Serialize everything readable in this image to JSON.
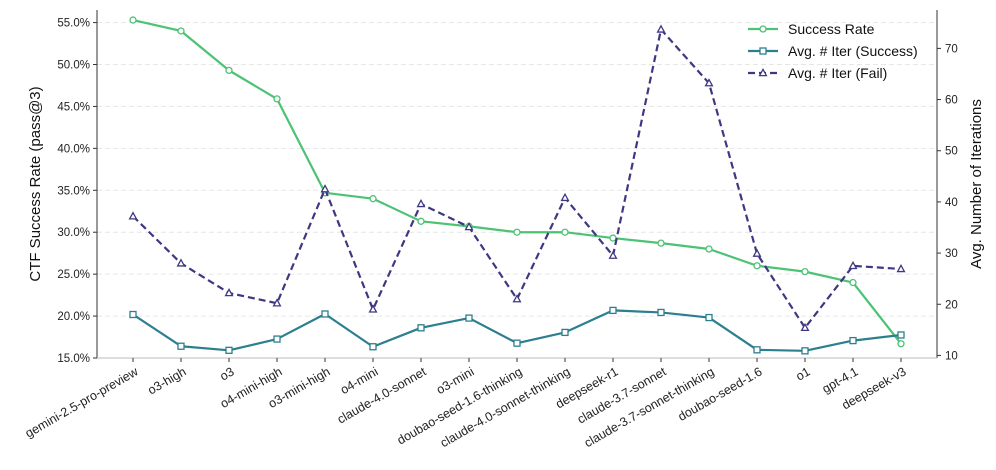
{
  "chart_data": {
    "type": "line",
    "categories": [
      "gemini-2.5-pro-preview",
      "o3-high",
      "o3",
      "o4-mini-high",
      "o3-mini-high",
      "o4-mini",
      "claude-4.0-sonnet",
      "o3-mini",
      "doubao-seed-1.6-thinking",
      "claude-4.0-sonnet-thinking",
      "deepseek-r1",
      "claude-3.7-sonnet",
      "claude-3.7-sonnet-thinking",
      "doubao-seed-1.6",
      "o1",
      "gpt-4.1",
      "deepseek-v3"
    ],
    "ylabel": "CTF Success Rate (pass@3)",
    "y2label": "Avg. Number of Iterations",
    "ylim": [
      15.0,
      56.5
    ],
    "y2lim": [
      9.5,
      77.5
    ],
    "yticks": [
      15,
      20,
      25,
      30,
      35,
      40,
      45,
      50,
      55
    ],
    "ytick_labels": [
      "15.0%",
      "20.0%",
      "25.0%",
      "30.0%",
      "35.0%",
      "40.0%",
      "45.0%",
      "50.0%",
      "55.0%"
    ],
    "y2ticks": [
      10,
      20,
      30,
      40,
      50,
      60,
      70
    ],
    "y2tick_labels": [
      "10",
      "20",
      "30",
      "40",
      "50",
      "60",
      "70"
    ],
    "grid": true,
    "legend_position": "top-right",
    "series": [
      {
        "name": "Success Rate",
        "axis": "left",
        "color": "#4cc274",
        "marker": "circle",
        "linestyle": "solid",
        "values": [
          55.3,
          54.0,
          49.3,
          45.9,
          34.7,
          34.0,
          31.3,
          30.7,
          30.0,
          30.0,
          29.3,
          28.7,
          28.0,
          26.0,
          25.3,
          24.0,
          16.7
        ]
      },
      {
        "name": "Avg. # Iter (Success)",
        "axis": "right",
        "color": "#2b7f8e",
        "marker": "square",
        "linestyle": "solid",
        "values": [
          18.0,
          11.8,
          11.0,
          13.2,
          18.1,
          11.7,
          15.4,
          17.3,
          12.4,
          14.5,
          18.8,
          18.4,
          17.4,
          11.1,
          10.9,
          12.9,
          14.0
        ]
      },
      {
        "name": "Avg. # Iter (Fail)",
        "axis": "right",
        "color": "#3e3882",
        "marker": "triangle",
        "linestyle": "dashed",
        "values": [
          37.2,
          28.0,
          22.2,
          20.2,
          42.5,
          19.0,
          39.6,
          35.1,
          21.0,
          40.8,
          29.5,
          73.7,
          63.2,
          29.9,
          15.4,
          27.5,
          26.9
        ]
      }
    ]
  }
}
